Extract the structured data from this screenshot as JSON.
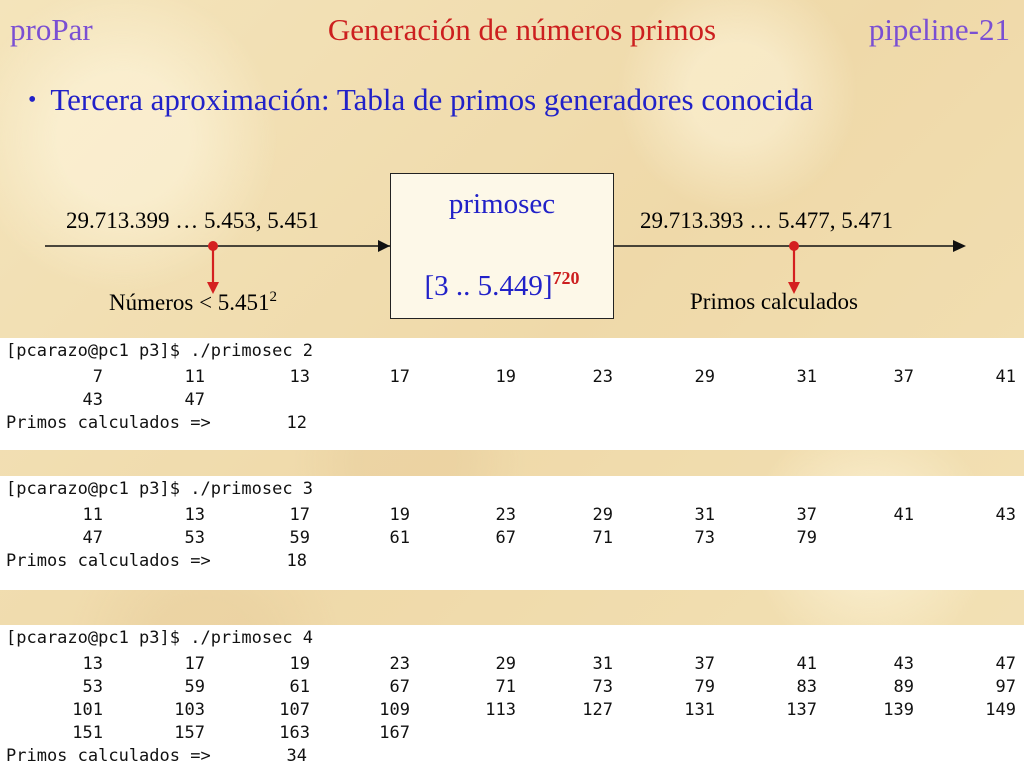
{
  "header": {
    "left": "proPar",
    "center": "Generación de números primos",
    "right": "pipeline-21"
  },
  "bullet": {
    "symbol": "•",
    "text": "Tercera aproximación: Tabla de primos generadores conocida"
  },
  "diagram": {
    "input_stream": "29.713.399 … 5.453, 5.451",
    "output_stream": "29.713.393 … 5.477, 5.471",
    "process_name": "primosec",
    "range_text": "[3 .. 5.449]",
    "range_sup": "720",
    "input_caption": "Números < 5.451",
    "input_caption_sup": "2",
    "output_caption": "Primos calculados"
  },
  "terminals": [
    {
      "command": "[pcarazo@pc1 p3]$ ./primosec 2",
      "rows": [
        [
          "7",
          "11",
          "13",
          "17",
          "19",
          "23",
          "29",
          "31",
          "37",
          "41"
        ],
        [
          "43",
          "47"
        ]
      ],
      "summary_label": "Primos calculados =>",
      "summary_value": "12"
    },
    {
      "command": "[pcarazo@pc1 p3]$ ./primosec 3",
      "rows": [
        [
          "11",
          "13",
          "17",
          "19",
          "23",
          "29",
          "31",
          "37",
          "41",
          "43"
        ],
        [
          "47",
          "53",
          "59",
          "61",
          "67",
          "71",
          "73",
          "79"
        ]
      ],
      "summary_label": "Primos calculados =>",
      "summary_value": "18"
    },
    {
      "command": "[pcarazo@pc1 p3]$ ./primosec 4",
      "rows": [
        [
          "13",
          "17",
          "19",
          "23",
          "29",
          "31",
          "37",
          "41",
          "43",
          "47"
        ],
        [
          "53",
          "59",
          "61",
          "67",
          "71",
          "73",
          "79",
          "83",
          "89",
          "97"
        ],
        [
          "101",
          "103",
          "107",
          "109",
          "113",
          "127",
          "131",
          "137",
          "139",
          "149"
        ],
        [
          "151",
          "157",
          "163",
          "167"
        ]
      ],
      "summary_label": "Primos calculados =>",
      "summary_value": "34"
    }
  ]
}
